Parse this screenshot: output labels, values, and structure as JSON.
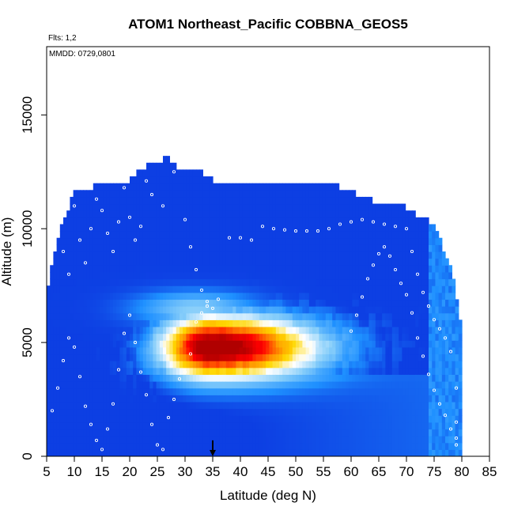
{
  "chart_data": {
    "type": "heatmap",
    "title": "ATOM1 Northeast_Pacific COBBNA_GEOS5",
    "subtitle_flights": "Flts: 1,2",
    "subtitle_dates": "MMDD: 0729,0801",
    "xlabel": "Latitude (deg N)",
    "ylabel": "Altitude (m)",
    "xlim": [
      5,
      85
    ],
    "ylim": [
      0,
      18000
    ],
    "x_ticks": [
      "5",
      "10",
      "15",
      "20",
      "25",
      "30",
      "35",
      "40",
      "45",
      "50",
      "55",
      "60",
      "65",
      "70",
      "75",
      "80",
      "85"
    ],
    "y_ticks": [
      "0",
      "5000",
      "10000",
      "15000"
    ],
    "grid": false,
    "legend": "none",
    "colormap": [
      "#8a2be2",
      "#0000cd",
      "#1e90ff",
      "#87cefa",
      "#ffffff",
      "#ffd700",
      "#ff8c00",
      "#ff0000",
      "#b00000"
    ],
    "envelope": {
      "lat": [
        5,
        7,
        10,
        12,
        15,
        20,
        22,
        27,
        29,
        32,
        35,
        45,
        50,
        55,
        60,
        65,
        70,
        75,
        78,
        80
      ],
      "top_m": [
        7000,
        9500,
        11500,
        11500,
        12000,
        12000,
        12500,
        13000,
        12500,
        12500,
        12000,
        12000,
        12000,
        12000,
        11500,
        11000,
        10800,
        10000,
        8200,
        5500
      ]
    },
    "features": [
      {
        "lat_min": 28,
        "lat_max": 38,
        "alt_min": 4000,
        "alt_max": 6000,
        "level": 1.0
      },
      {
        "lat_min": 26,
        "lat_max": 48,
        "alt_min": 3500,
        "alt_max": 6500,
        "level": 0.7
      },
      {
        "lat_min": 22,
        "lat_max": 62,
        "alt_min": 3000,
        "alt_max": 7000,
        "level": 0.45
      }
    ],
    "obs_marker": {
      "lat": 35,
      "alt_start": 700,
      "alt_end": 0
    },
    "flight_track_points": [
      [
        7,
        10500
      ],
      [
        8,
        9000
      ],
      [
        9,
        8000
      ],
      [
        10,
        11000
      ],
      [
        11,
        9500
      ],
      [
        12,
        8500
      ],
      [
        13,
        10000
      ],
      [
        14,
        11300
      ],
      [
        15,
        10800
      ],
      [
        16,
        9800
      ],
      [
        17,
        9000
      ],
      [
        18,
        10300
      ],
      [
        19,
        11800
      ],
      [
        20,
        10500
      ],
      [
        21,
        9500
      ],
      [
        22,
        10100
      ],
      [
        23,
        12100
      ],
      [
        24,
        11500
      ],
      [
        26,
        11000
      ],
      [
        28,
        12500
      ],
      [
        30,
        10400
      ],
      [
        31,
        9200
      ],
      [
        32,
        8200
      ],
      [
        33,
        7300
      ],
      [
        34,
        6800
      ],
      [
        35,
        6500
      ],
      [
        36,
        6900
      ],
      [
        38,
        9600
      ],
      [
        40,
        9600
      ],
      [
        42,
        9500
      ],
      [
        44,
        10100
      ],
      [
        46,
        10000
      ],
      [
        48,
        9950
      ],
      [
        50,
        9900
      ],
      [
        52,
        9900
      ],
      [
        54,
        9900
      ],
      [
        56,
        10000
      ],
      [
        58,
        10200
      ],
      [
        60,
        10300
      ],
      [
        62,
        10400
      ],
      [
        64,
        10300
      ],
      [
        66,
        10200
      ],
      [
        68,
        10100
      ],
      [
        70,
        10000
      ],
      [
        71,
        9000
      ],
      [
        72,
        8000
      ],
      [
        73,
        7200
      ],
      [
        74,
        6600
      ],
      [
        75,
        6000
      ],
      [
        76,
        5600
      ],
      [
        77,
        5200
      ],
      [
        78,
        4600
      ],
      [
        79,
        3000
      ],
      [
        79,
        1500
      ],
      [
        79,
        500
      ],
      [
        6,
        2000
      ],
      [
        7,
        3000
      ],
      [
        8,
        4200
      ],
      [
        9,
        5200
      ],
      [
        10,
        4800
      ],
      [
        11,
        3500
      ],
      [
        12,
        2200
      ],
      [
        13,
        1400
      ],
      [
        14,
        700
      ],
      [
        15,
        300
      ],
      [
        16,
        1200
      ],
      [
        17,
        2300
      ],
      [
        18,
        3800
      ],
      [
        19,
        5400
      ],
      [
        20,
        6200
      ],
      [
        21,
        5000
      ],
      [
        22,
        3700
      ],
      [
        23,
        2700
      ],
      [
        24,
        1400
      ],
      [
        25,
        500
      ],
      [
        26,
        300
      ],
      [
        27,
        1700
      ],
      [
        28,
        2500
      ],
      [
        29,
        3400
      ],
      [
        30,
        3700
      ],
      [
        31,
        4500
      ],
      [
        32,
        5900
      ],
      [
        33,
        6300
      ],
      [
        34,
        6600
      ],
      [
        60,
        5500
      ],
      [
        61,
        6200
      ],
      [
        62,
        7000
      ],
      [
        63,
        7800
      ],
      [
        64,
        8400
      ],
      [
        65,
        8900
      ],
      [
        66,
        9200
      ],
      [
        67,
        8800
      ],
      [
        68,
        8200
      ],
      [
        69,
        7600
      ],
      [
        70,
        7100
      ],
      [
        71,
        6300
      ],
      [
        72,
        5200
      ],
      [
        73,
        4400
      ],
      [
        74,
        3600
      ],
      [
        75,
        2900
      ],
      [
        76,
        2300
      ],
      [
        77,
        1800
      ],
      [
        78,
        1200
      ],
      [
        79,
        800
      ]
    ]
  }
}
